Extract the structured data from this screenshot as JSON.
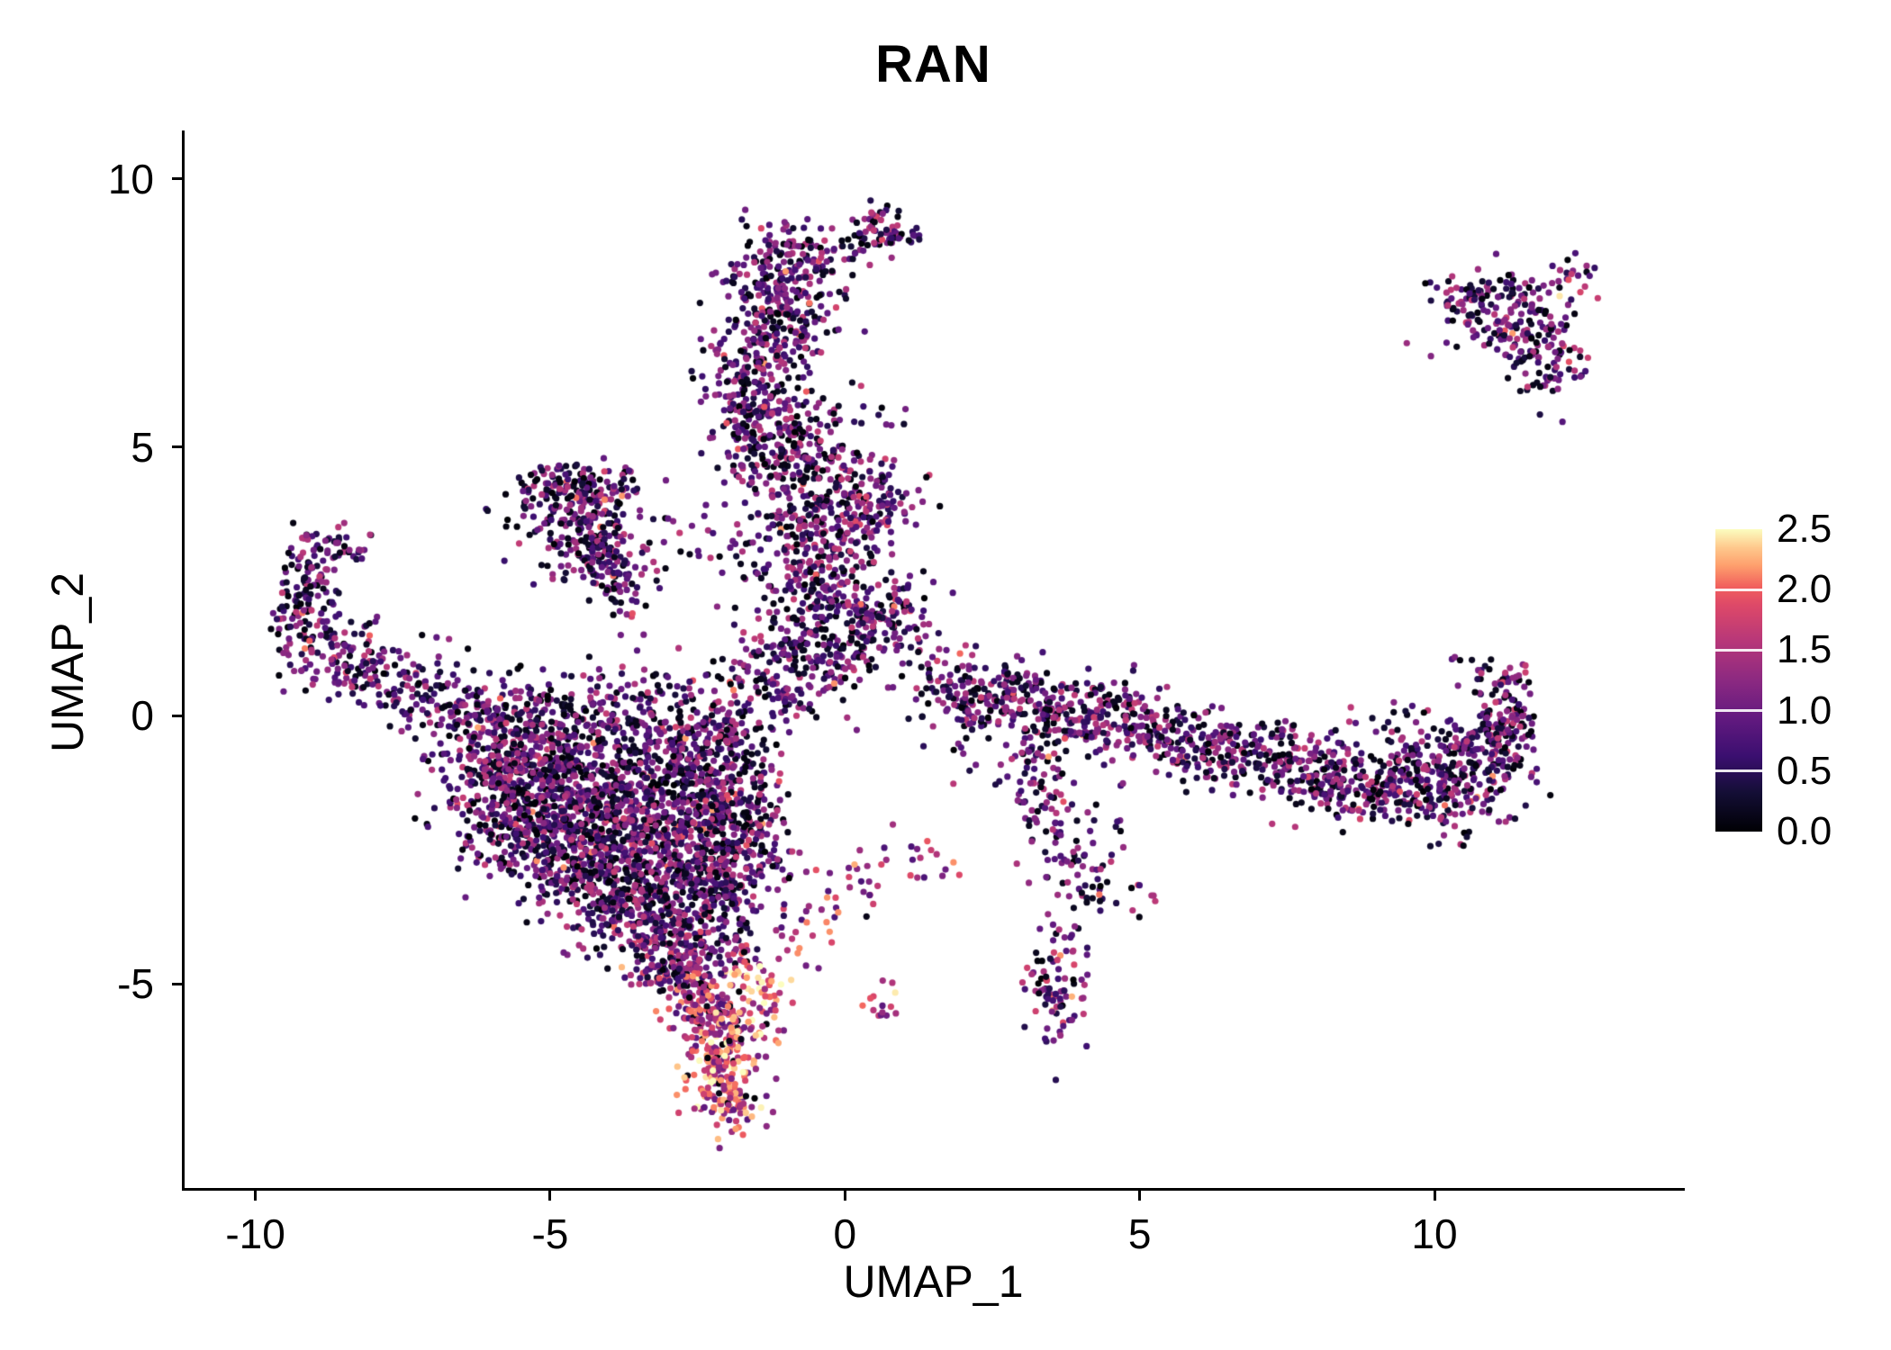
{
  "chart_data": {
    "type": "scatter",
    "title": "RAN",
    "xlabel": "UMAP_1",
    "ylabel": "UMAP_2",
    "xlim": [
      -11.2,
      14.2
    ],
    "ylim": [
      -8.8,
      10.9
    ],
    "xticks": [
      "-10",
      "-5",
      "0",
      "5",
      "10"
    ],
    "xtick_values": [
      -10,
      -5,
      0,
      5,
      10
    ],
    "yticks": [
      "10",
      "5",
      "0",
      "-5"
    ],
    "ytick_values": [
      10,
      5,
      0,
      -5
    ],
    "grid": false,
    "legend_position": "right",
    "colorbar": {
      "min": 0.0,
      "max": 2.5,
      "tick_labels": [
        "2.5",
        "2.0",
        "1.5",
        "1.0",
        "0.5",
        "0.0"
      ],
      "tick_values": [
        2.5,
        2.0,
        1.5,
        1.0,
        0.5,
        0.0
      ],
      "inner_tick_values": [
        2.0,
        1.5,
        1.0,
        0.5
      ]
    },
    "colormap": "magma",
    "colormap_stops": [
      [
        0.0,
        "#000004"
      ],
      [
        0.13,
        "#140e36"
      ],
      [
        0.25,
        "#3b0f70"
      ],
      [
        0.38,
        "#641a80"
      ],
      [
        0.5,
        "#8c2981"
      ],
      [
        0.63,
        "#b73779"
      ],
      [
        0.75,
        "#de4968"
      ],
      [
        0.81,
        "#f1605d"
      ],
      [
        0.88,
        "#fe9f6d"
      ],
      [
        0.94,
        "#fec98d"
      ],
      [
        1.0,
        "#fcfdbf"
      ]
    ],
    "point_radius": 3.6,
    "seed": 42,
    "value_model": {
      "black_fraction": 0.17,
      "base_min": 0.12,
      "base_span": 1.55,
      "high_fraction": 0.07,
      "high_boost": 0.55
    },
    "clusters_format": [
      "x",
      "y",
      "sx",
      "sy",
      "n",
      "value_bias"
    ],
    "clusters": [
      [
        -0.9,
        8.45,
        0.55,
        0.4,
        170,
        0
      ],
      [
        0.6,
        9.0,
        0.3,
        0.22,
        70,
        0
      ],
      [
        -1.1,
        7.4,
        0.5,
        0.5,
        160,
        0
      ],
      [
        -1.5,
        6.4,
        0.45,
        0.55,
        150,
        0
      ],
      [
        -1.4,
        5.5,
        0.5,
        0.5,
        140,
        0
      ],
      [
        -0.95,
        4.8,
        0.55,
        0.45,
        110,
        0
      ],
      [
        0.1,
        5.7,
        0.35,
        0.45,
        12,
        0
      ],
      [
        -0.45,
        4.1,
        0.6,
        0.5,
        130,
        0
      ],
      [
        0.5,
        3.95,
        0.4,
        0.38,
        110,
        0.2
      ],
      [
        -0.8,
        3.2,
        0.5,
        0.5,
        120,
        0
      ],
      [
        -0.3,
        2.3,
        0.6,
        0.55,
        170,
        0
      ],
      [
        0.65,
        1.8,
        0.45,
        0.4,
        130,
        0
      ],
      [
        -0.6,
        1.2,
        0.65,
        0.5,
        150,
        0
      ],
      [
        -1.3,
        0.45,
        0.6,
        0.4,
        100,
        0
      ],
      [
        -4.5,
        4.35,
        0.6,
        0.25,
        90,
        0
      ],
      [
        -4.6,
        3.8,
        0.6,
        0.4,
        130,
        0
      ],
      [
        -4.3,
        3.2,
        0.5,
        0.4,
        110,
        0
      ],
      [
        -3.9,
        2.7,
        0.35,
        0.3,
        60,
        0
      ],
      [
        -3.7,
        2.1,
        0.25,
        0.25,
        20,
        0
      ],
      [
        -2.7,
        3.1,
        0.5,
        0.4,
        14,
        0
      ],
      [
        -9.25,
        1.95,
        0.25,
        0.5,
        70,
        0
      ],
      [
        -9.0,
        2.75,
        0.3,
        0.35,
        50,
        0
      ],
      [
        -8.5,
        3.15,
        0.3,
        0.2,
        30,
        0
      ],
      [
        -8.8,
        1.4,
        0.4,
        0.3,
        60,
        0
      ],
      [
        -8.2,
        0.95,
        0.5,
        0.3,
        70,
        0
      ],
      [
        -7.4,
        0.5,
        0.55,
        0.3,
        70,
        0
      ],
      [
        -6.6,
        0.15,
        0.5,
        0.3,
        50,
        0
      ],
      [
        -6.0,
        -0.1,
        0.4,
        0.3,
        40,
        0
      ],
      [
        -5.6,
        -0.6,
        0.7,
        0.5,
        220,
        0
      ],
      [
        -4.8,
        -1.1,
        0.8,
        0.6,
        290,
        0
      ],
      [
        -4.0,
        -1.8,
        0.8,
        0.6,
        290,
        0
      ],
      [
        -4.6,
        -2.4,
        0.7,
        0.5,
        210,
        0
      ],
      [
        -3.4,
        -2.7,
        0.7,
        0.55,
        240,
        0
      ],
      [
        -3.9,
        -3.4,
        0.6,
        0.45,
        170,
        0
      ],
      [
        -3.1,
        -4.1,
        0.5,
        0.45,
        150,
        0
      ],
      [
        -2.7,
        -1.5,
        0.6,
        0.6,
        200,
        0
      ],
      [
        -2.2,
        -2.4,
        0.5,
        0.6,
        150,
        0
      ],
      [
        -2.6,
        -0.4,
        0.6,
        0.45,
        150,
        0
      ],
      [
        -2.0,
        -1.0,
        0.45,
        0.5,
        100,
        0
      ],
      [
        -2.3,
        -3.3,
        0.45,
        0.5,
        120,
        0
      ],
      [
        -5.9,
        -1.6,
        0.5,
        0.5,
        100,
        0
      ],
      [
        -5.2,
        -2.2,
        0.6,
        0.5,
        150,
        0
      ],
      [
        -4.4,
        -0.1,
        0.8,
        0.35,
        130,
        0
      ],
      [
        -4.0,
        0.5,
        0.9,
        0.35,
        55,
        0
      ],
      [
        -1.9,
        -2.0,
        0.4,
        0.5,
        80,
        0
      ],
      [
        -2.4,
        -4.4,
        0.4,
        0.35,
        80,
        0.2
      ],
      [
        -1.9,
        -3.0,
        0.35,
        0.4,
        55,
        0
      ],
      [
        -1.5,
        -2.3,
        0.3,
        0.7,
        30,
        0
      ],
      [
        -2.8,
        -4.8,
        0.4,
        0.35,
        90,
        0.3
      ],
      [
        -2.4,
        -5.3,
        0.35,
        0.4,
        90,
        0.5
      ],
      [
        -2.1,
        -5.9,
        0.35,
        0.4,
        100,
        0.8
      ],
      [
        -2.0,
        -6.6,
        0.35,
        0.45,
        120,
        0.9
      ],
      [
        -1.95,
        -7.3,
        0.25,
        0.25,
        50,
        0.7
      ],
      [
        -1.55,
        -4.9,
        0.28,
        0.3,
        40,
        1.1
      ],
      [
        -1.3,
        -5.5,
        0.2,
        0.25,
        18,
        0.7
      ],
      [
        -0.9,
        -3.9,
        0.5,
        0.35,
        25,
        0.6
      ],
      [
        0.1,
        -3.2,
        0.6,
        0.35,
        25,
        0.6
      ],
      [
        1.1,
        -2.7,
        0.5,
        0.3,
        20,
        0.6
      ],
      [
        0.68,
        -5.35,
        0.18,
        0.2,
        14,
        0.4
      ],
      [
        1.9,
        0.55,
        0.4,
        0.35,
        70,
        0
      ],
      [
        2.6,
        0.3,
        0.5,
        0.35,
        90,
        0
      ],
      [
        3.4,
        0.1,
        0.6,
        0.35,
        105,
        0
      ],
      [
        4.3,
        -0.1,
        0.6,
        0.35,
        110,
        0
      ],
      [
        5.1,
        -0.25,
        0.55,
        0.35,
        100,
        0
      ],
      [
        6.0,
        -0.5,
        0.6,
        0.35,
        100,
        0
      ],
      [
        7.0,
        -0.8,
        0.6,
        0.35,
        110,
        0
      ],
      [
        8.0,
        -1.05,
        0.6,
        0.4,
        130,
        0
      ],
      [
        9.0,
        -1.25,
        0.6,
        0.4,
        140,
        0
      ],
      [
        9.9,
        -1.1,
        0.5,
        0.45,
        130,
        0
      ],
      [
        10.7,
        -0.8,
        0.45,
        0.5,
        130,
        0
      ],
      [
        11.2,
        -0.3,
        0.3,
        0.5,
        90,
        0
      ],
      [
        11.35,
        0.5,
        0.2,
        0.35,
        40,
        0.2
      ],
      [
        10.6,
        0.95,
        0.25,
        0.2,
        10,
        0
      ],
      [
        9.3,
        -0.05,
        0.3,
        0.25,
        12,
        0
      ],
      [
        10.3,
        -1.9,
        0.4,
        0.3,
        25,
        0
      ],
      [
        3.15,
        -0.9,
        0.3,
        0.4,
        40,
        0
      ],
      [
        3.5,
        -1.8,
        0.3,
        0.45,
        40,
        0
      ],
      [
        3.9,
        -2.6,
        0.3,
        0.4,
        35,
        0
      ],
      [
        4.15,
        -3.2,
        0.25,
        0.3,
        25,
        0
      ],
      [
        3.6,
        -5.0,
        0.28,
        0.55,
        90,
        0.2
      ],
      [
        11.0,
        7.6,
        0.5,
        0.4,
        110,
        0
      ],
      [
        11.6,
        7.0,
        0.4,
        0.4,
        70,
        0
      ],
      [
        12.0,
        6.5,
        0.3,
        0.3,
        45,
        0
      ],
      [
        12.35,
        8.15,
        0.25,
        0.2,
        22,
        0.3
      ],
      [
        10.5,
        7.8,
        0.3,
        0.2,
        25,
        0
      ],
      [
        0.9,
        5.5,
        0.15,
        0.15,
        3,
        0
      ],
      [
        1.3,
        0.9,
        0.3,
        0.3,
        8,
        0
      ],
      [
        2.1,
        -0.6,
        0.3,
        0.3,
        6,
        0
      ],
      [
        -6.9,
        1.3,
        0.3,
        0.3,
        6,
        0
      ],
      [
        5.0,
        -3.3,
        0.25,
        0.25,
        8,
        0.2
      ],
      [
        4.6,
        -2.0,
        0.2,
        0.3,
        8,
        0
      ]
    ]
  }
}
